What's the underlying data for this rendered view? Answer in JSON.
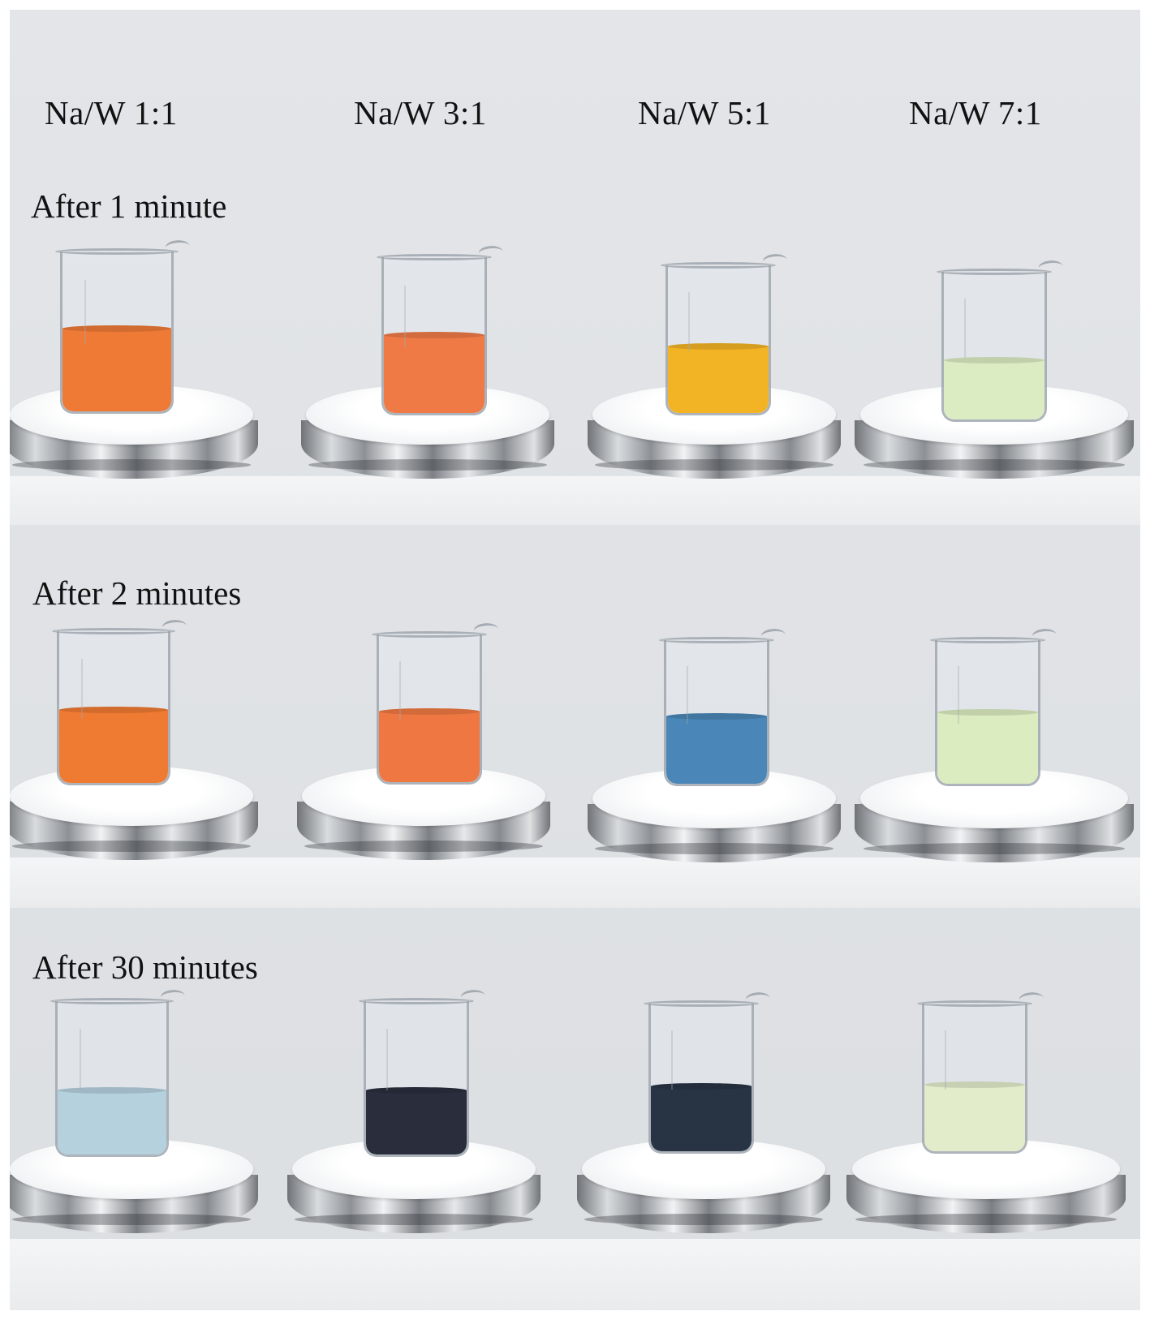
{
  "columns": [
    "Na/W 1:1",
    "Na/W 3:1",
    "Na/W 5:1",
    "Na/W 7:1"
  ],
  "rows": [
    {
      "label": "After 1 minute",
      "liquid_colors": [
        "#ee7a36",
        "#ef7a46",
        "#f2b424",
        "#dbecc2"
      ]
    },
    {
      "label": "After 2 minutes",
      "liquid_colors": [
        "#ef7a32",
        "#ef7842",
        "#4a86b7",
        "#dbecc0"
      ]
    },
    {
      "label": "After 30 minutes",
      "liquid_colors": [
        "#b6d1de",
        "#2a2d3c",
        "#283344",
        "#e2ecca"
      ]
    }
  ]
}
